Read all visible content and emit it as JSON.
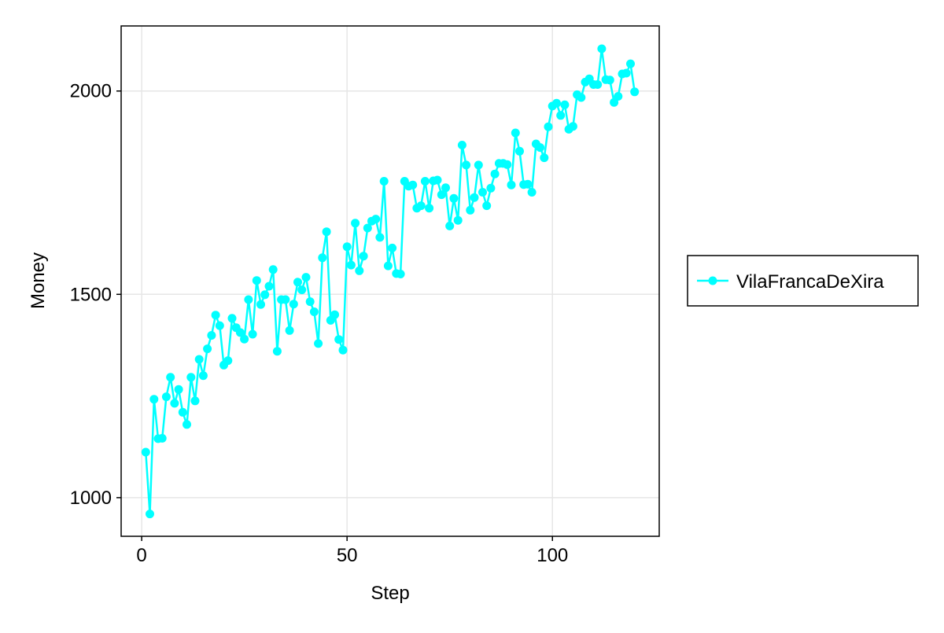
{
  "chart_data": {
    "type": "line",
    "title": "",
    "xlabel": "Step",
    "ylabel": "Money",
    "xlim": [
      -5,
      126
    ],
    "ylim": [
      905,
      2160
    ],
    "xticks": [
      0,
      50,
      100
    ],
    "yticks": [
      1000,
      1500,
      2000
    ],
    "grid": true,
    "legend_position": "right",
    "series": [
      {
        "name": "VilaFrancaDeXira",
        "color": "#00ffff",
        "marker": "circle",
        "x": [
          1,
          2,
          3,
          4,
          5,
          6,
          7,
          8,
          9,
          10,
          11,
          12,
          13,
          14,
          15,
          16,
          17,
          18,
          19,
          20,
          21,
          22,
          23,
          24,
          25,
          26,
          27,
          28,
          29,
          30,
          31,
          32,
          33,
          34,
          35,
          36,
          37,
          38,
          39,
          40,
          41,
          42,
          43,
          44,
          45,
          46,
          47,
          48,
          49,
          50,
          51,
          52,
          53,
          54,
          55,
          56,
          57,
          58,
          59,
          60,
          61,
          62,
          63,
          64,
          65,
          66,
          67,
          68,
          69,
          70,
          71,
          72,
          73,
          74,
          75,
          76,
          77,
          78,
          79,
          80,
          81,
          82,
          83,
          84,
          85,
          86,
          87,
          88,
          89,
          90,
          91,
          92,
          93,
          94,
          95,
          96,
          97,
          98,
          99,
          100,
          101,
          102,
          103,
          104,
          105,
          106,
          107,
          108,
          109,
          110,
          111,
          112,
          113,
          114,
          115,
          116,
          117,
          118,
          119,
          120
        ],
        "y": [
          1112,
          960,
          1242,
          1145,
          1146,
          1248,
          1296,
          1232,
          1266,
          1210,
          1180,
          1296,
          1238,
          1340,
          1300,
          1366,
          1399,
          1449,
          1423,
          1326,
          1337,
          1441,
          1418,
          1406,
          1390,
          1487,
          1402,
          1534,
          1475,
          1499,
          1520,
          1561,
          1360,
          1487,
          1487,
          1411,
          1476,
          1530,
          1511,
          1542,
          1482,
          1457,
          1379,
          1590,
          1654,
          1436,
          1450,
          1389,
          1363,
          1617,
          1572,
          1675,
          1558,
          1594,
          1663,
          1680,
          1685,
          1640,
          1778,
          1570,
          1614,
          1551,
          1550,
          1778,
          1766,
          1769,
          1712,
          1718,
          1778,
          1712,
          1779,
          1781,
          1745,
          1762,
          1668,
          1736,
          1682,
          1867,
          1818,
          1707,
          1738,
          1818,
          1751,
          1718,
          1761,
          1796,
          1822,
          1822,
          1819,
          1769,
          1897,
          1852,
          1770,
          1771,
          1751,
          1870,
          1861,
          1836,
          1912,
          1963,
          1970,
          1940,
          1966,
          1906,
          1913,
          1991,
          1984,
          2022,
          2030,
          2016,
          2016,
          2104,
          2028,
          2027,
          1972,
          1987,
          2042,
          2044,
          2067,
          1998
        ]
      }
    ]
  }
}
